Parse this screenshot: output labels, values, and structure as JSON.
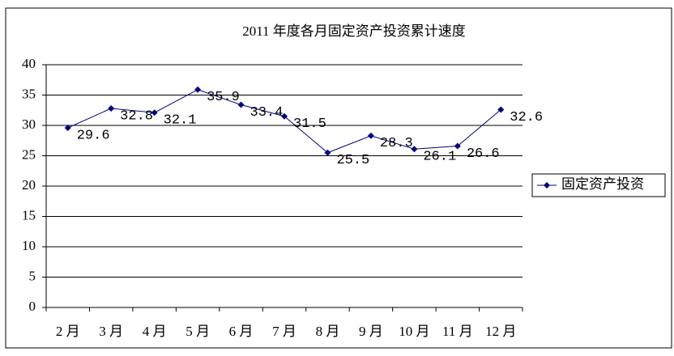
{
  "chart_data": {
    "type": "line",
    "title": "2011 年度各月固定资产投资累计速度",
    "categories": [
      "2 月",
      "3 月",
      "4 月",
      "5 月",
      "6 月",
      "7 月",
      "8 月",
      "9 月",
      "10 月",
      "11 月",
      "12 月"
    ],
    "series": [
      {
        "name": "固定资产投资",
        "color": "#000080",
        "values": [
          29.6,
          32.8,
          32.1,
          35.9,
          33.4,
          31.5,
          25.5,
          28.3,
          26.1,
          26.6,
          32.6
        ]
      }
    ],
    "ylim": [
      0,
      40
    ],
    "yticks": [
      0,
      5,
      10,
      15,
      20,
      25,
      30,
      35,
      40
    ],
    "grid": true,
    "legend": "right",
    "data_labels": true
  }
}
